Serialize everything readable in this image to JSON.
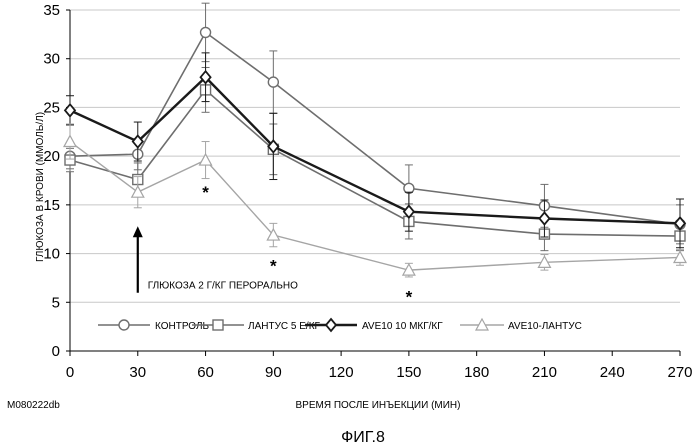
{
  "chart_data": {
    "type": "line",
    "title": "",
    "xlabel": "ВРЕМЯ ПОСЛЕ ИНЪЕКЦИИ (МИН)",
    "ylabel": "ГЛЮКОЗА В КРОВИ (ММОЛЬ/Л)",
    "xlim": [
      0,
      270
    ],
    "ylim": [
      0,
      35
    ],
    "xticks": [
      0,
      30,
      60,
      90,
      120,
      150,
      180,
      210,
      240,
      270
    ],
    "yticks": [
      0,
      5,
      10,
      15,
      20,
      25,
      30,
      35
    ],
    "x": [
      0,
      30,
      60,
      90,
      150,
      210,
      270
    ],
    "grid": "horizontal",
    "legend_position": "bottom",
    "series": [
      {
        "name": "КОНТРОЛЬ",
        "marker": "circle",
        "color": "#6e6e6e",
        "values": [
          20.0,
          20.2,
          32.7,
          27.6,
          16.7,
          14.9,
          13.0
        ],
        "errors": [
          1.3,
          1.6,
          3.0,
          3.2,
          2.4,
          2.2,
          2.0
        ]
      },
      {
        "name": "ЛАНТУС 5 Е/КГ",
        "marker": "square",
        "color": "#6e6e6e",
        "values": [
          19.6,
          17.6,
          26.8,
          20.7,
          13.3,
          12.0,
          11.8
        ],
        "errors": [
          1.2,
          1.7,
          2.3,
          2.6,
          1.8,
          1.7,
          1.5
        ]
      },
      {
        "name": "AVE10 10 МКГ/КГ",
        "marker": "diamond",
        "color": "#1a1a1a",
        "values": [
          24.7,
          21.5,
          28.1,
          21.0,
          14.3,
          13.6,
          13.1
        ],
        "errors": [
          1.5,
          2.0,
          2.5,
          3.4,
          2.0,
          1.9,
          2.5
        ]
      },
      {
        "name": "AVE10-ЛАНТУС",
        "marker": "triangle",
        "color": "#a5a5a5",
        "values": [
          21.5,
          16.3,
          19.6,
          11.9,
          8.3,
          9.1,
          9.6
        ],
        "errors": [
          1.8,
          1.6,
          1.9,
          1.2,
          0.7,
          0.8,
          0.8
        ]
      }
    ],
    "annotations": [
      {
        "text": "*",
        "x": 60,
        "y": 16.5
      },
      {
        "text": "*",
        "x": 90,
        "y": 9.0
      },
      {
        "text": "*",
        "x": 150,
        "y": 5.8
      },
      {
        "text": "ГЛЮКОЗА 2 Г/КГ ПЕРОРАЛЬНО",
        "x": 30,
        "y": 6.8,
        "arrow_from": 6.8,
        "arrow_to": 12.8
      }
    ],
    "code": "M080222db",
    "caption": "ФИГ.8"
  }
}
